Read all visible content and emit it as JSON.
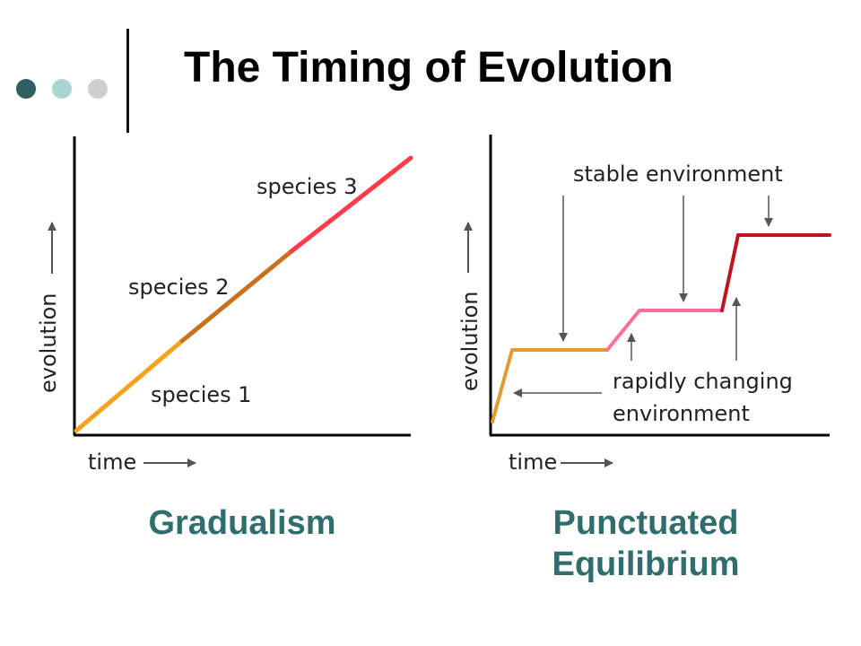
{
  "slide": {
    "title": "The Timing of Evolution",
    "accent_dots": [
      "#2f5f61",
      "#a9d5d3",
      "#cfcfcf"
    ]
  },
  "gradualism": {
    "caption": "Gradualism",
    "xlabel": "time",
    "ylabel": "evolution",
    "labels": {
      "species_1": "species 1",
      "species_2": "species 2",
      "species_3": "species 3"
    },
    "colors": {
      "species_1": "#f5a21c",
      "species_2": "#c8701a",
      "species_3": "#ff3b49"
    }
  },
  "punctuated": {
    "caption_line1": "Punctuated",
    "caption_line2": "Equilibrium",
    "xlabel": "time",
    "ylabel": "evolution",
    "labels": {
      "stable": "stable environment",
      "rapid_line1": "rapidly changing",
      "rapid_line2": "environment"
    },
    "colors": {
      "stage_1": "#e09a30",
      "stage_2": "#ff6f9a",
      "stage_3": "#c4121c"
    }
  }
}
